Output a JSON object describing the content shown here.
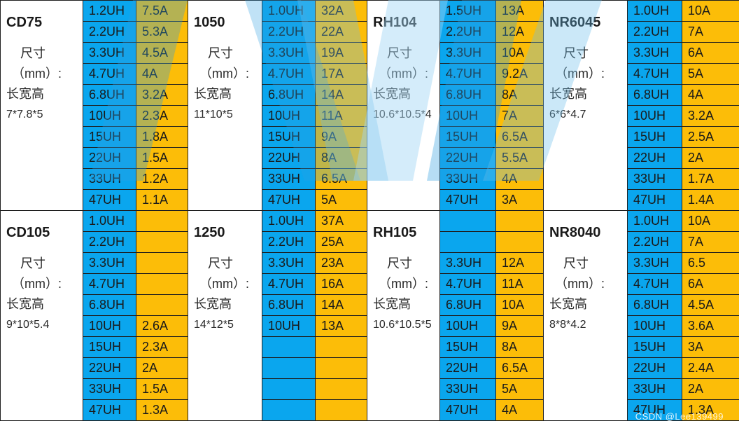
{
  "blocks": [
    [
      {
        "model": "CD75",
        "dim_label": [
          "尺寸",
          "（mm）:",
          "长宽高"
        ],
        "dims": "7*7.8*5",
        "rows": [
          [
            "1.2UH",
            "7.5A"
          ],
          [
            "2.2UH",
            "5.3A"
          ],
          [
            "3.3UH",
            "4.5A"
          ],
          [
            "4.7UH",
            "4A"
          ],
          [
            "6.8UH",
            "3.2A"
          ],
          [
            "10UH",
            "2.3A"
          ],
          [
            "15UH",
            "1.8A"
          ],
          [
            "22UH",
            "1.5A"
          ],
          [
            "33UH",
            "1.2A"
          ],
          [
            "47UH",
            "1.1A"
          ]
        ]
      },
      {
        "model": "1050",
        "dim_label": [
          "尺寸",
          "（mm）:",
          "长宽高"
        ],
        "dims": "11*10*5",
        "rows": [
          [
            "1.0UH",
            "32A"
          ],
          [
            "2.2UH",
            "22A"
          ],
          [
            "3.3UH",
            "19A"
          ],
          [
            "4.7UH",
            "17A"
          ],
          [
            "6.8UH",
            "14A"
          ],
          [
            "10UH",
            "11A"
          ],
          [
            "15UH",
            "9A"
          ],
          [
            "22UH",
            "8A"
          ],
          [
            "33UH",
            "6.5A"
          ],
          [
            "47UH",
            "5A"
          ]
        ]
      },
      {
        "model": "RH104",
        "dim_label": [
          "尺寸",
          "（mm）:",
          "长宽高"
        ],
        "dims": "10.6*10.5*4",
        "rows": [
          [
            "1.5UH",
            "13A"
          ],
          [
            "2.2UH",
            "12A"
          ],
          [
            "3.3UH",
            "10A"
          ],
          [
            "4.7UH",
            "9.2A"
          ],
          [
            "6.8UH",
            "8A"
          ],
          [
            "10UH",
            "7A"
          ],
          [
            "15UH",
            "6.5A"
          ],
          [
            "22UH",
            "5.5A"
          ],
          [
            "33UH",
            "4A"
          ],
          [
            "47UH",
            "3A"
          ]
        ]
      },
      {
        "model": "NR6045",
        "dim_label": [
          "尺寸",
          "（mm）:",
          "长宽高"
        ],
        "dims": "6*6*4.7",
        "rows": [
          [
            "1.0UH",
            "10A"
          ],
          [
            "2.2UH",
            "7A"
          ],
          [
            "3.3UH",
            "6A"
          ],
          [
            "4.7UH",
            "5A"
          ],
          [
            "6.8UH",
            "4A"
          ],
          [
            "10UH",
            "3.2A"
          ],
          [
            "15UH",
            "2.5A"
          ],
          [
            "22UH",
            "2A"
          ],
          [
            "33UH",
            "1.7A"
          ],
          [
            "47UH",
            "1.4A"
          ]
        ]
      }
    ],
    [
      {
        "model": "CD105",
        "dim_label": [
          "尺寸",
          "（mm）:",
          "长宽高"
        ],
        "dims": "9*10*5.4",
        "rows": [
          [
            "1.0UH",
            ""
          ],
          [
            "2.2UH",
            ""
          ],
          [
            "3.3UH",
            ""
          ],
          [
            "4.7UH",
            ""
          ],
          [
            "6.8UH",
            ""
          ],
          [
            "10UH",
            "2.6A"
          ],
          [
            "15UH",
            "2.3A"
          ],
          [
            "22UH",
            "2A"
          ],
          [
            "33UH",
            "1.5A"
          ],
          [
            "47UH",
            "1.3A"
          ]
        ]
      },
      {
        "model": "1250",
        "dim_label": [
          "尺寸",
          "（mm）:",
          "长宽高"
        ],
        "dims": "14*12*5",
        "rows": [
          [
            "1.0UH",
            "37A"
          ],
          [
            "2.2UH",
            "25A"
          ],
          [
            "3.3UH",
            "23A"
          ],
          [
            "4.7UH",
            "16A"
          ],
          [
            "6.8UH",
            "14A"
          ],
          [
            "10UH",
            "13A"
          ],
          [
            "",
            ""
          ],
          [
            "",
            ""
          ],
          [
            "",
            ""
          ],
          [
            "",
            ""
          ]
        ]
      },
      {
        "model": "RH105",
        "dim_label": [
          "尺寸",
          "（mm）:",
          "长宽高"
        ],
        "dims": "10.6*10.5*5",
        "rows": [
          [
            "",
            ""
          ],
          [
            "",
            ""
          ],
          [
            "3.3UH",
            "12A"
          ],
          [
            "4.7UH",
            "11A"
          ],
          [
            "6.8UH",
            "10A"
          ],
          [
            "10UH",
            "9A"
          ],
          [
            "15UH",
            "8A"
          ],
          [
            "22UH",
            "6.5A"
          ],
          [
            "33UH",
            "5A"
          ],
          [
            "47UH",
            "4A"
          ]
        ]
      },
      {
        "model": "NR8040",
        "dim_label": [
          "尺寸",
          "（mm）:",
          "长宽高"
        ],
        "dims": "8*8*4.2",
        "rows": [
          [
            "1.0UH",
            "10A"
          ],
          [
            "2.2UH",
            "7A"
          ],
          [
            "3.3UH",
            "6.5"
          ],
          [
            "4.7UH",
            "6A"
          ],
          [
            "6.8UH",
            "4.5A"
          ],
          [
            "10UH",
            "3.6A"
          ],
          [
            "15UH",
            "3A"
          ],
          [
            "22UH",
            "2.4A"
          ],
          [
            "33UH",
            "2A"
          ],
          [
            "47UH",
            "1.3A"
          ]
        ]
      }
    ]
  ],
  "watermark_csdn": "CSDN @Lee139499",
  "colors": {
    "inductance": "#0aa6ee",
    "current": "#fcbd08",
    "watermark": "#9fd4f3"
  }
}
